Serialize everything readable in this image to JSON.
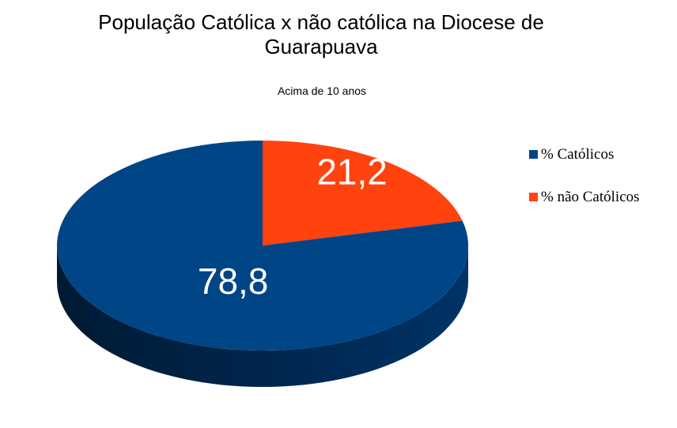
{
  "chart_data": {
    "type": "pie",
    "title": "População Católica x não católica na Diocese de Guarapuava",
    "subtitle": "Acima de 10 anos",
    "categories": [
      "% Católicos",
      "% não Católicos"
    ],
    "values": [
      78.8,
      21.2
    ],
    "data_labels": [
      "78,8",
      "21,2"
    ],
    "colors": [
      "#004586",
      "#ff420e"
    ],
    "legend_position": "right",
    "style": "3d"
  }
}
